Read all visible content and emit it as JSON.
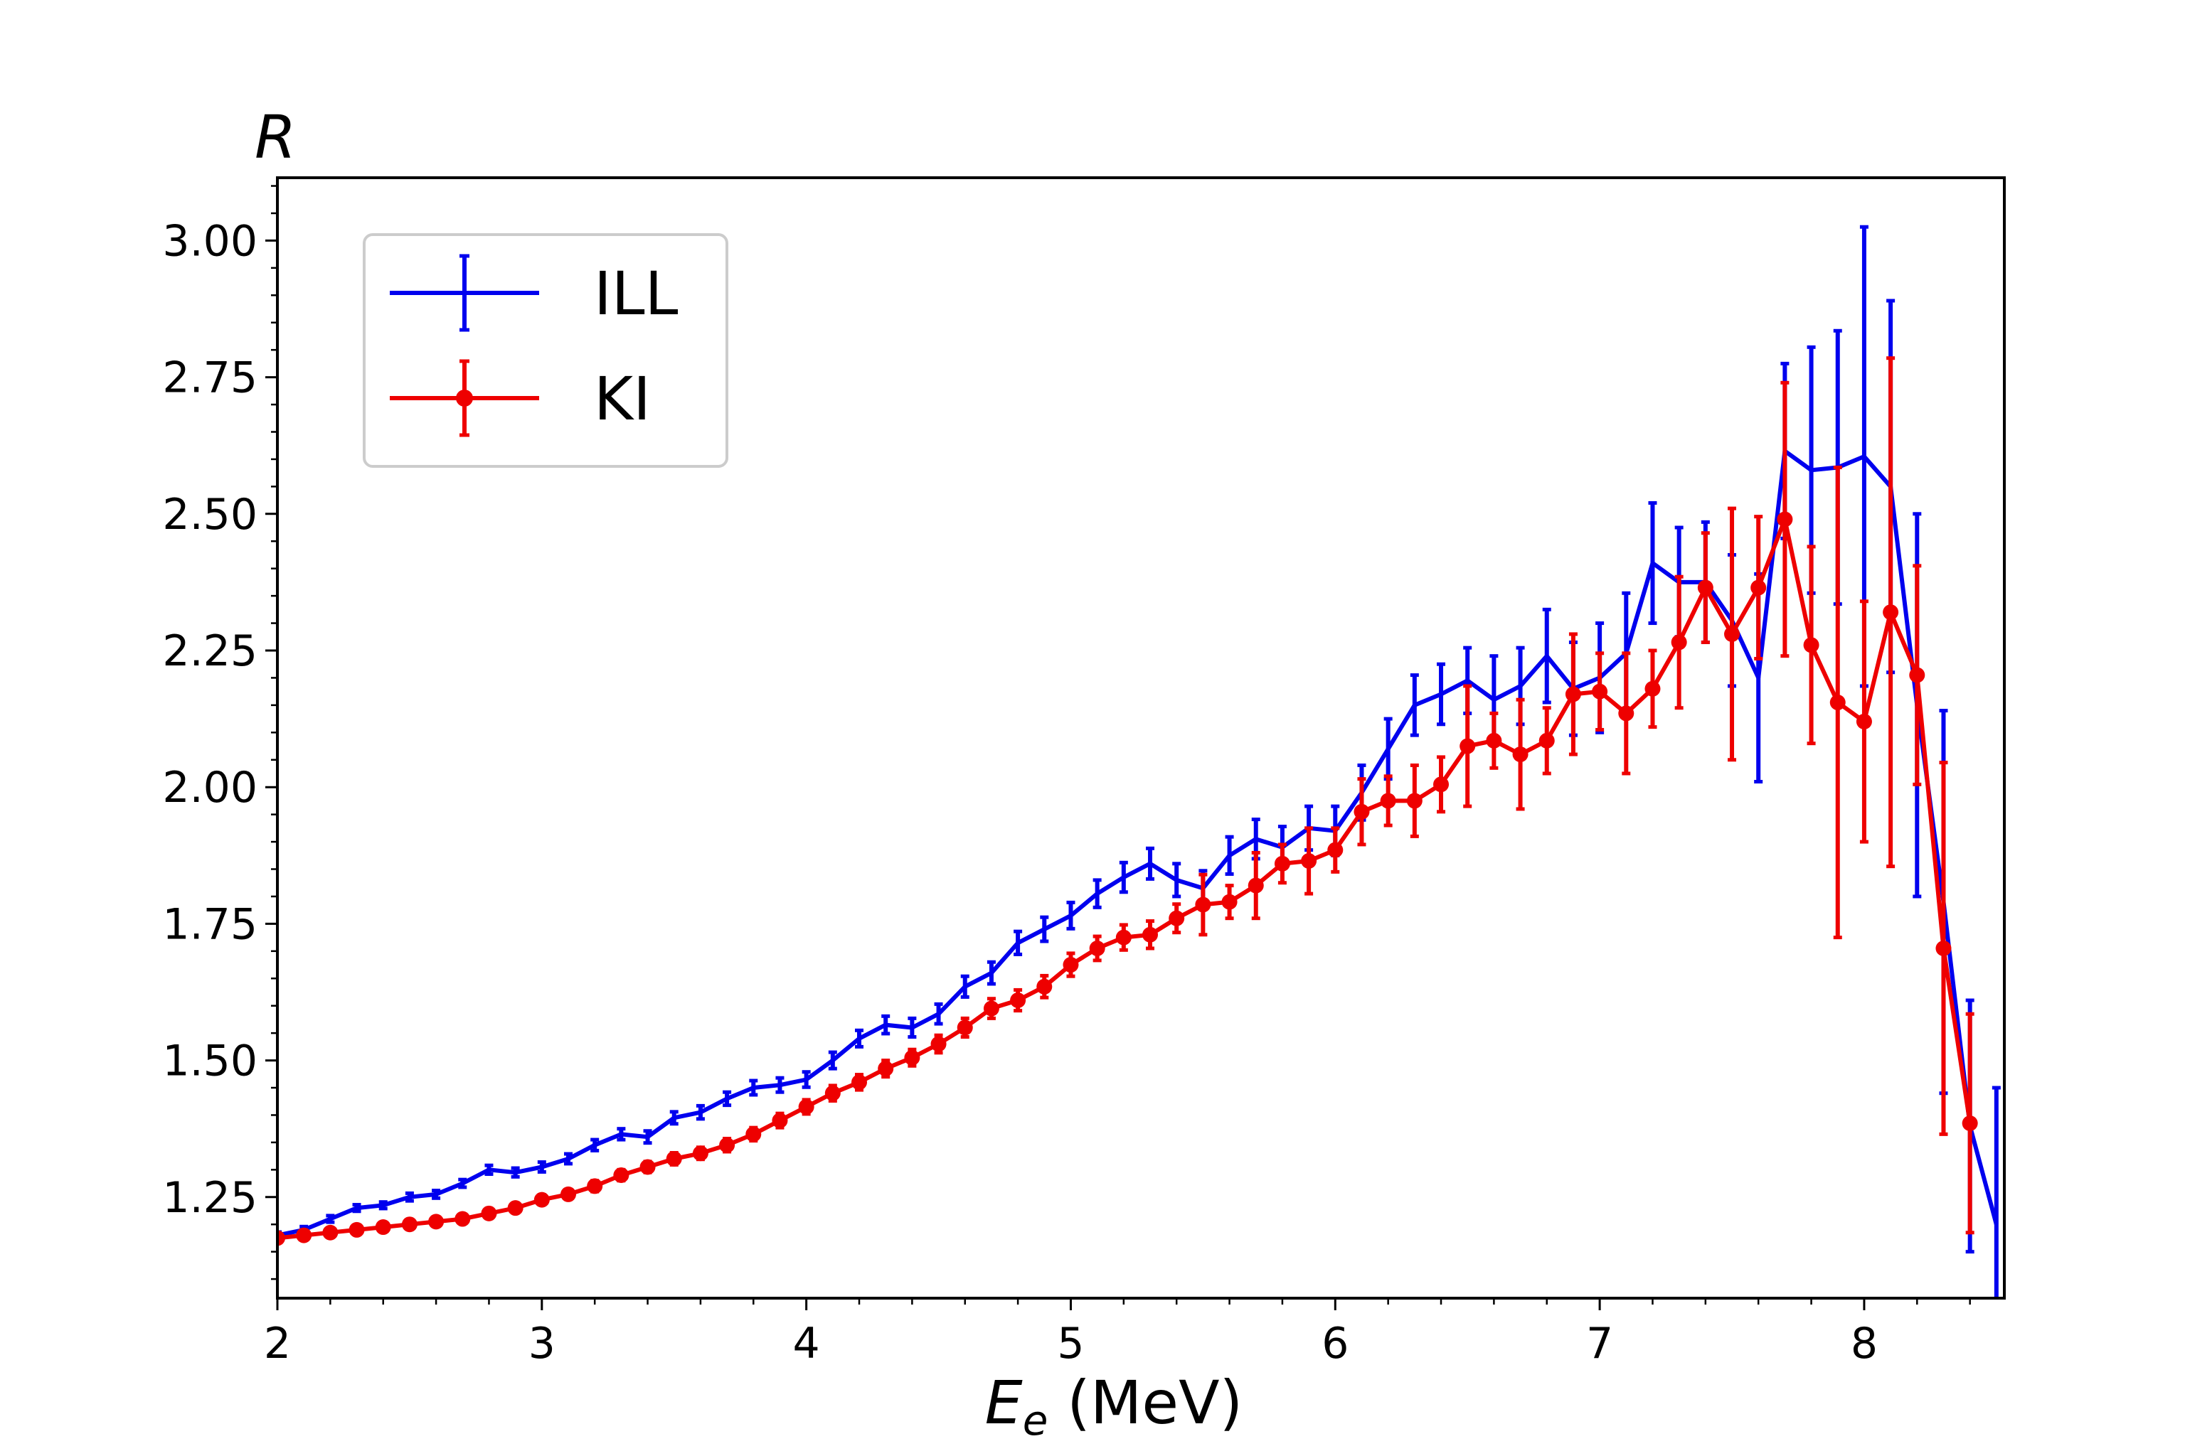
{
  "chart_data": {
    "type": "line",
    "title": "",
    "xlabel": {
      "main": "E",
      "sub": "e",
      "rest": " (MeV)"
    },
    "ylabel": "R",
    "xlim": [
      2.0,
      8.53
    ],
    "ylim": [
      1.065,
      3.115
    ],
    "x_ticks": [
      "2",
      "3",
      "4",
      "5",
      "6",
      "7",
      "8"
    ],
    "y_ticks": [
      "1.25",
      "1.50",
      "1.75",
      "2.00",
      "2.25",
      "2.50",
      "2.75",
      "3.00"
    ],
    "legend_position": "upper-left",
    "series": [
      {
        "name": "ILL",
        "color": "#0000ee",
        "marker": "none",
        "x": [
          2.0,
          2.1,
          2.2,
          2.3,
          2.4,
          2.5,
          2.6,
          2.7,
          2.8,
          2.9,
          3.0,
          3.1,
          3.2,
          3.3,
          3.4,
          3.5,
          3.6,
          3.7,
          3.8,
          3.9,
          4.0,
          4.1,
          4.2,
          4.3,
          4.4,
          4.5,
          4.6,
          4.7,
          4.8,
          4.9,
          5.0,
          5.1,
          5.2,
          5.3,
          5.4,
          5.5,
          5.6,
          5.7,
          5.8,
          5.9,
          6.0,
          6.1,
          6.2,
          6.3,
          6.4,
          6.5,
          6.6,
          6.7,
          6.8,
          6.9,
          7.0,
          7.1,
          7.2,
          7.3,
          7.4,
          7.5,
          7.6,
          7.7,
          7.8,
          7.9,
          8.0,
          8.1,
          8.2,
          8.3,
          8.4,
          8.5
        ],
        "y": [
          1.18,
          1.19,
          1.21,
          1.23,
          1.235,
          1.25,
          1.255,
          1.275,
          1.3,
          1.295,
          1.305,
          1.32,
          1.345,
          1.365,
          1.36,
          1.395,
          1.405,
          1.43,
          1.45,
          1.455,
          1.465,
          1.5,
          1.54,
          1.565,
          1.56,
          1.585,
          1.635,
          1.66,
          1.715,
          1.74,
          1.765,
          1.805,
          1.835,
          1.86,
          1.83,
          1.815,
          1.875,
          1.905,
          1.89,
          1.925,
          1.92,
          1.99,
          2.07,
          2.15,
          2.17,
          2.195,
          2.16,
          2.185,
          2.24,
          2.18,
          2.2,
          2.245,
          2.41,
          2.375,
          2.375,
          2.305,
          2.2,
          2.615,
          2.58,
          2.585,
          2.605,
          2.55,
          2.15,
          1.79,
          1.38,
          1.2
        ],
        "err": [
          0.006,
          0.006,
          0.006,
          0.006,
          0.006,
          0.007,
          0.007,
          0.007,
          0.008,
          0.008,
          0.009,
          0.009,
          0.01,
          0.01,
          0.011,
          0.011,
          0.012,
          0.012,
          0.013,
          0.013,
          0.014,
          0.015,
          0.015,
          0.016,
          0.017,
          0.018,
          0.019,
          0.02,
          0.021,
          0.022,
          0.024,
          0.025,
          0.027,
          0.028,
          0.03,
          0.032,
          0.034,
          0.036,
          0.038,
          0.04,
          0.045,
          0.05,
          0.055,
          0.055,
          0.055,
          0.06,
          0.08,
          0.07,
          0.085,
          0.085,
          0.1,
          0.11,
          0.11,
          0.1,
          0.11,
          0.12,
          0.19,
          0.16,
          0.225,
          0.25,
          0.42,
          0.34,
          0.35,
          0.35,
          0.23,
          0.25
        ]
      },
      {
        "name": "KI",
        "color": "#ee0000",
        "marker": "circle",
        "x": [
          2.0,
          2.1,
          2.2,
          2.3,
          2.4,
          2.5,
          2.6,
          2.7,
          2.8,
          2.9,
          3.0,
          3.1,
          3.2,
          3.3,
          3.4,
          3.5,
          3.6,
          3.7,
          3.8,
          3.9,
          4.0,
          4.1,
          4.2,
          4.3,
          4.4,
          4.5,
          4.6,
          4.7,
          4.8,
          4.9,
          5.0,
          5.1,
          5.2,
          5.3,
          5.4,
          5.5,
          5.6,
          5.7,
          5.8,
          5.9,
          6.0,
          6.1,
          6.2,
          6.3,
          6.4,
          6.5,
          6.6,
          6.7,
          6.8,
          6.9,
          7.0,
          7.1,
          7.2,
          7.3,
          7.4,
          7.5,
          7.6,
          7.7,
          7.8,
          7.9,
          8.0,
          8.1,
          8.2,
          8.3,
          8.4
        ],
        "y": [
          1.175,
          1.18,
          1.185,
          1.19,
          1.195,
          1.2,
          1.205,
          1.21,
          1.22,
          1.23,
          1.245,
          1.255,
          1.27,
          1.29,
          1.305,
          1.32,
          1.33,
          1.345,
          1.365,
          1.39,
          1.415,
          1.44,
          1.46,
          1.485,
          1.505,
          1.53,
          1.56,
          1.595,
          1.61,
          1.635,
          1.675,
          1.705,
          1.725,
          1.73,
          1.76,
          1.785,
          1.79,
          1.82,
          1.86,
          1.865,
          1.885,
          1.955,
          1.975,
          1.975,
          2.005,
          2.075,
          2.085,
          2.06,
          2.085,
          2.17,
          2.175,
          2.135,
          2.18,
          2.265,
          2.365,
          2.28,
          2.365,
          2.49,
          2.26,
          2.155,
          2.12,
          2.32,
          2.205,
          1.705,
          1.385
        ],
        "err": [
          0.008,
          0.008,
          0.008,
          0.008,
          0.008,
          0.008,
          0.008,
          0.008,
          0.009,
          0.009,
          0.009,
          0.009,
          0.01,
          0.01,
          0.01,
          0.011,
          0.011,
          0.012,
          0.012,
          0.013,
          0.013,
          0.014,
          0.014,
          0.015,
          0.015,
          0.016,
          0.017,
          0.018,
          0.019,
          0.02,
          0.021,
          0.022,
          0.023,
          0.025,
          0.026,
          0.055,
          0.03,
          0.06,
          0.035,
          0.06,
          0.04,
          0.06,
          0.045,
          0.065,
          0.05,
          0.11,
          0.05,
          0.1,
          0.06,
          0.11,
          0.07,
          0.11,
          0.07,
          0.12,
          0.1,
          0.23,
          0.13,
          0.25,
          0.18,
          0.43,
          0.22,
          0.465,
          0.2,
          0.34,
          0.2
        ]
      }
    ]
  }
}
